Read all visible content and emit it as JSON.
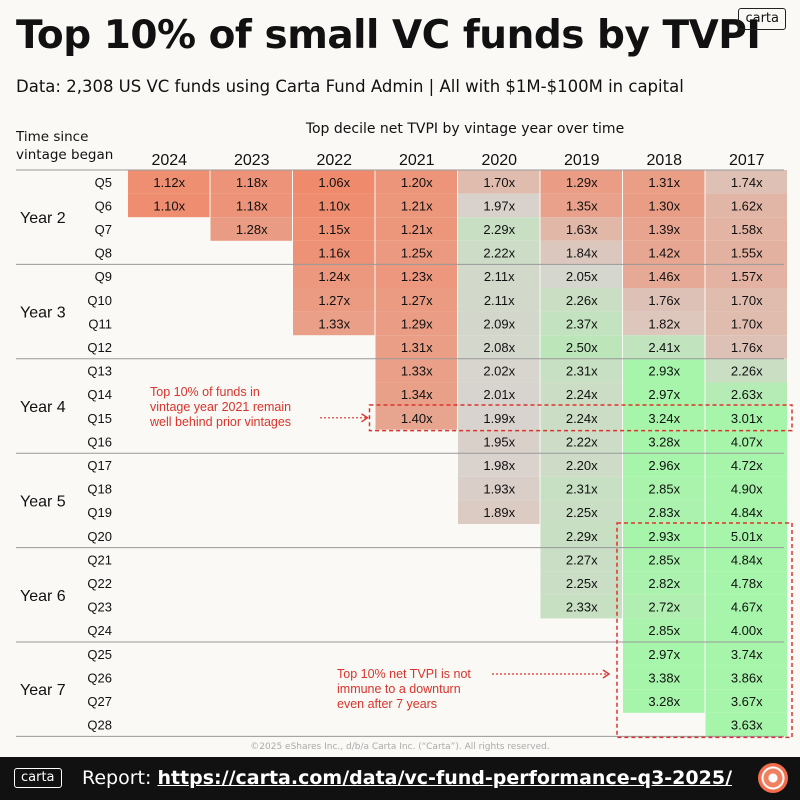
{
  "header": {
    "title": "Top 10% of small VC funds by TVPI",
    "logo": "carta",
    "subtitle": "Data: 2,308 US VC funds using Carta Fund Admin | All with $1M-$100M in capital"
  },
  "footer": {
    "copyright": "©2025 eShares Inc., d/b/a Carta Inc. (“Carta”). All rights reserved.",
    "logo": "carta",
    "report_label": "Report: ",
    "report_url": "https://carta.com/data/vc-fund-performance-q3-2025/",
    "icon": "carta-target-icon"
  },
  "chart_data": {
    "type": "heatmap",
    "title": "Top decile net TVPI by vintage year over time",
    "row_axis_label": "Time since vintage began",
    "columns": [
      "2024",
      "2023",
      "2022",
      "2021",
      "2020",
      "2019",
      "2018",
      "2017"
    ],
    "rows": [
      "Q5",
      "Q6",
      "Q7",
      "Q8",
      "Q9",
      "Q10",
      "Q11",
      "Q12",
      "Q13",
      "Q14",
      "Q15",
      "Q16",
      "Q17",
      "Q18",
      "Q19",
      "Q20",
      "Q21",
      "Q22",
      "Q23",
      "Q24",
      "Q25",
      "Q26",
      "Q27",
      "Q28"
    ],
    "year_groups": [
      {
        "label": "Year 2",
        "rows": [
          "Q5",
          "Q6",
          "Q7",
          "Q8"
        ]
      },
      {
        "label": "Year 3",
        "rows": [
          "Q9",
          "Q10",
          "Q11",
          "Q12"
        ]
      },
      {
        "label": "Year 4",
        "rows": [
          "Q13",
          "Q14",
          "Q15",
          "Q16"
        ]
      },
      {
        "label": "Year 5",
        "rows": [
          "Q17",
          "Q18",
          "Q19",
          "Q20"
        ]
      },
      {
        "label": "Year 6",
        "rows": [
          "Q21",
          "Q22",
          "Q23",
          "Q24"
        ]
      },
      {
        "label": "Year 7",
        "rows": [
          "Q25",
          "Q26",
          "Q27",
          "Q28"
        ]
      }
    ],
    "values": [
      [
        1.12,
        1.18,
        1.06,
        1.2,
        1.7,
        1.29,
        1.31,
        1.74
      ],
      [
        1.1,
        1.18,
        1.1,
        1.21,
        1.97,
        1.35,
        1.3,
        1.62
      ],
      [
        null,
        1.28,
        1.15,
        1.21,
        2.29,
        1.63,
        1.39,
        1.58
      ],
      [
        null,
        null,
        1.16,
        1.25,
        2.22,
        1.84,
        1.42,
        1.55
      ],
      [
        null,
        null,
        1.24,
        1.23,
        2.11,
        2.05,
        1.46,
        1.57
      ],
      [
        null,
        null,
        1.27,
        1.27,
        2.11,
        2.26,
        1.76,
        1.7
      ],
      [
        null,
        null,
        1.33,
        1.29,
        2.09,
        2.37,
        1.82,
        1.7
      ],
      [
        null,
        null,
        null,
        1.31,
        2.08,
        2.5,
        2.41,
        1.76
      ],
      [
        null,
        null,
        null,
        1.33,
        2.02,
        2.31,
        2.93,
        2.26
      ],
      [
        null,
        null,
        null,
        1.34,
        2.01,
        2.24,
        2.97,
        2.63
      ],
      [
        null,
        null,
        null,
        1.4,
        1.99,
        2.24,
        3.24,
        3.01
      ],
      [
        null,
        null,
        null,
        null,
        1.95,
        2.22,
        3.28,
        4.07
      ],
      [
        null,
        null,
        null,
        null,
        1.98,
        2.2,
        2.96,
        4.72
      ],
      [
        null,
        null,
        null,
        null,
        1.93,
        2.31,
        2.85,
        4.9
      ],
      [
        null,
        null,
        null,
        null,
        1.89,
        2.25,
        2.83,
        4.84
      ],
      [
        null,
        null,
        null,
        null,
        null,
        2.29,
        2.93,
        5.01
      ],
      [
        null,
        null,
        null,
        null,
        null,
        2.27,
        2.85,
        4.84
      ],
      [
        null,
        null,
        null,
        null,
        null,
        2.25,
        2.82,
        4.78
      ],
      [
        null,
        null,
        null,
        null,
        null,
        2.33,
        2.72,
        4.67
      ],
      [
        null,
        null,
        null,
        null,
        null,
        null,
        2.85,
        4.0
      ],
      [
        null,
        null,
        null,
        null,
        null,
        null,
        2.97,
        3.74
      ],
      [
        null,
        null,
        null,
        null,
        null,
        null,
        3.38,
        3.86
      ],
      [
        null,
        null,
        null,
        null,
        null,
        null,
        3.28,
        3.67
      ],
      [
        null,
        null,
        null,
        null,
        null,
        null,
        null,
        3.63
      ]
    ],
    "value_suffix": "x",
    "annotations": [
      {
        "text": [
          "Top 10% of funds in",
          "vintage year 2021 remain",
          "well behind prior vintages"
        ],
        "highlight": {
          "rows": [
            "Q15"
          ],
          "columns": [
            "2021",
            "2020",
            "2019",
            "2018",
            "2017"
          ]
        }
      },
      {
        "text": [
          "Top 10% net TVPI is not",
          "immune to a downturn",
          "even after 7 years"
        ],
        "highlight": {
          "rows": [
            "Q20",
            "Q21",
            "Q22",
            "Q23",
            "Q24",
            "Q25",
            "Q26",
            "Q27",
            "Q28"
          ],
          "columns": [
            "2018",
            "2017"
          ]
        }
      }
    ],
    "colors": {
      "low": "#f08a6c",
      "mid": "#d8d4cf",
      "high": "#a6f5aa",
      "annotation": "#d9342b"
    }
  }
}
